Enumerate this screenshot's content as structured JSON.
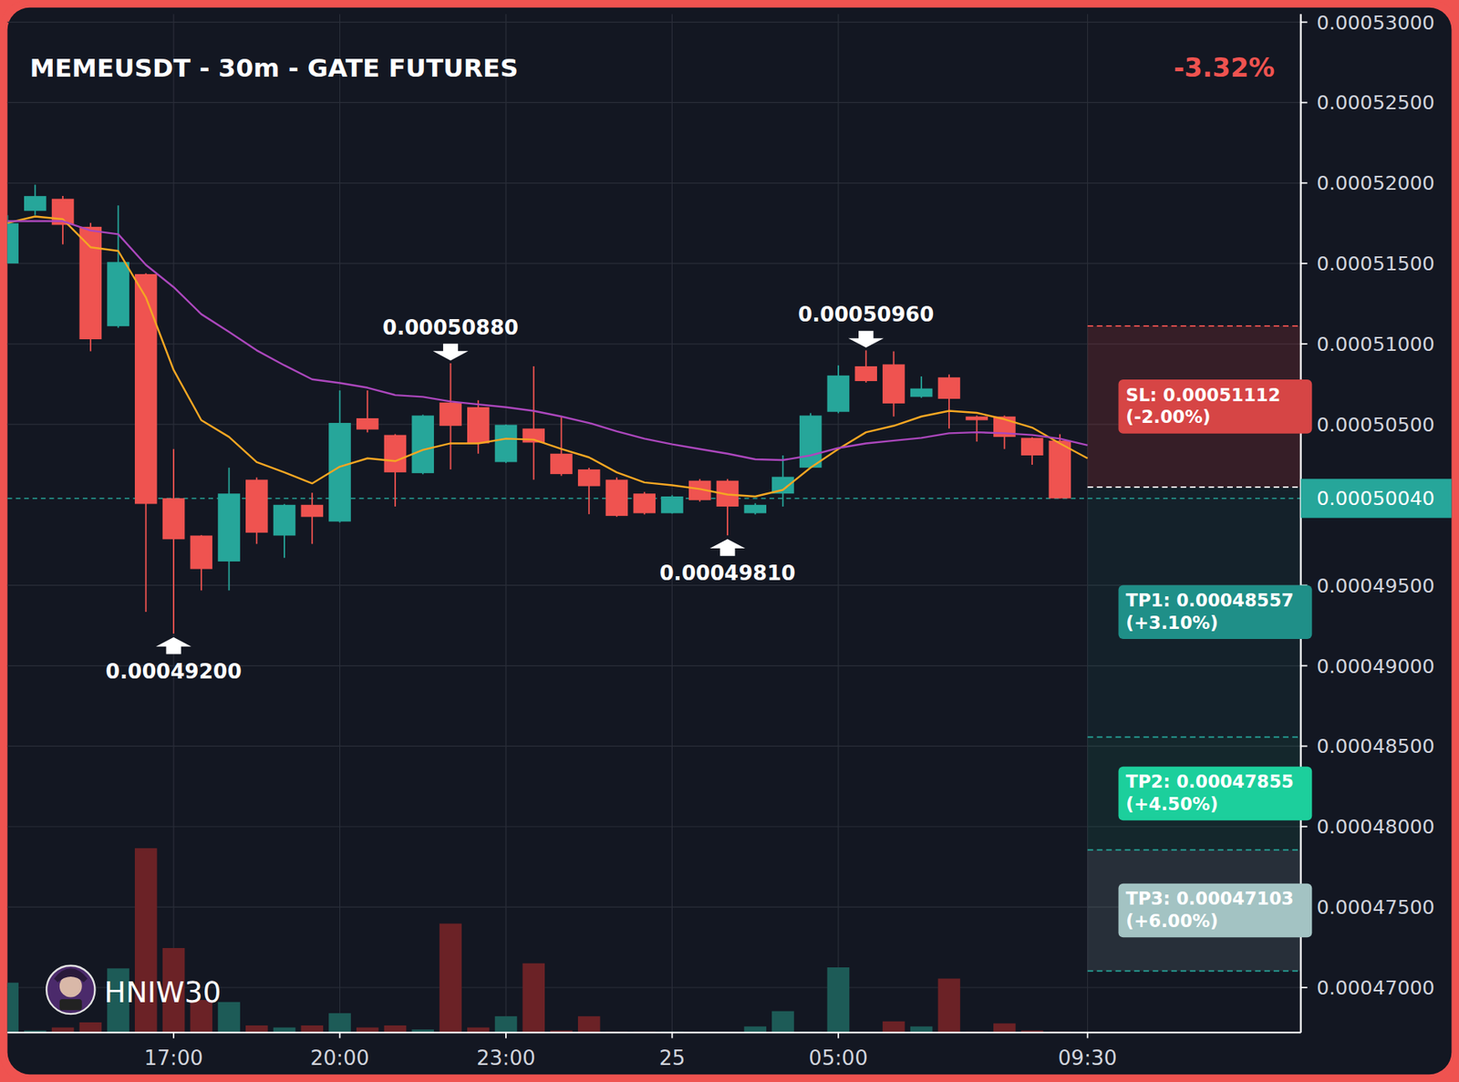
{
  "chart_data": {
    "type": "candlestick",
    "title": "MEMEUSDT - 30m - GATE FUTURES",
    "change_label": "-3.32%",
    "watermark": "HNIW30",
    "grid": true,
    "categories": [
      null,
      null,
      null,
      null,
      null,
      null,
      "17:00",
      null,
      null,
      null,
      null,
      null,
      "20:00",
      null,
      null,
      null,
      null,
      null,
      "23:00",
      null,
      null,
      null,
      null,
      null,
      "25",
      null,
      null,
      null,
      null,
      null,
      "05:00",
      null,
      null,
      null,
      null,
      null,
      null,
      null,
      null,
      "09:30"
    ],
    "ylim": [
      0.0004672,
      0.0005305
    ],
    "yticks": [
      {
        "value": 0.00047,
        "label": "0.00047000"
      },
      {
        "value": 0.000475,
        "label": "0.00047500"
      },
      {
        "value": 0.00048,
        "label": "0.00048000"
      },
      {
        "value": 0.000485,
        "label": "0.00048500"
      },
      {
        "value": 0.00049,
        "label": "0.00049000"
      },
      {
        "value": 0.000495,
        "label": "0.00049500"
      },
      {
        "value": 0.000505,
        "label": "0.00050500"
      },
      {
        "value": 0.00051,
        "label": "0.00051000"
      },
      {
        "value": 0.000515,
        "label": "0.00051500"
      },
      {
        "value": 0.00052,
        "label": "0.00052000"
      },
      {
        "value": 0.000525,
        "label": "0.00052500"
      },
      {
        "value": 0.00053,
        "label": "0.00053000"
      }
    ],
    "y2lim": [
      0,
      1000
    ],
    "series": [
      {
        "type": "candlestick",
        "open": [
          0.000515,
          0.00051827,
          0.00051902,
          0.00051728,
          0.0005111,
          0.00051434,
          0.00050041,
          0.00049809,
          0.00049648,
          0.00050156,
          0.00049809,
          0.0005,
          0.00049896,
          0.00050538,
          0.00050434,
          0.00050197,
          0.00050636,
          0.00050607,
          0.00050266,
          0.00050474,
          0.00050318,
          0.0005022,
          0.00050156,
          0.0005007,
          0.00049948,
          0.0005015,
          0.0005015,
          0.00049948,
          0.0005007,
          0.00050231,
          0.00050578,
          0.00050861,
          0.00050873,
          0.00050671,
          0.00050792,
          0.00050549,
          0.00050549,
          0.00050416,
          0.00050399,
          null
        ],
        "high": [
          0.000518,
          0.00051989,
          0.0005192,
          0.00051752,
          0.00051861,
          0.0005144,
          0.00050347,
          0.00049812,
          0.00050231,
          0.0005017,
          0.00050005,
          0.00050075,
          0.00050711,
          0.00050711,
          0.0005044,
          0.0005056,
          0.0005088,
          0.0005065,
          0.000505,
          0.00050861,
          0.00050549,
          0.0005023,
          0.0005017,
          0.0005008,
          0.0005006,
          0.0005016,
          0.0005016,
          0.0005001,
          0.00050307,
          0.0005057,
          0.00050867,
          0.0005096,
          0.00050954,
          0.00050798,
          0.0005081,
          0.00050555,
          0.00050555,
          0.0005042,
          0.00050439,
          null
        ],
        "low": [
          0.000515,
          0.000518,
          0.00051619,
          0.00050954,
          0.000511,
          0.00049335,
          0.000492,
          0.00049468,
          0.00049468,
          0.00049757,
          0.00049671,
          0.00049757,
          0.0004989,
          0.0005045,
          0.00049989,
          0.0005019,
          0.0005022,
          0.00050318,
          0.0005026,
          0.00050156,
          0.0005018,
          0.00049942,
          0.00049925,
          0.0004994,
          0.00049945,
          0.0005002,
          0.0004981,
          0.0004994,
          0.00049989,
          0.00050225,
          0.0005057,
          0.0005076,
          0.00050549,
          0.00050665,
          0.00050474,
          0.00050393,
          0.00050347,
          0.00050249,
          0.0005004,
          null
        ],
        "close": [
          0.0005175,
          0.00051919,
          0.0005174,
          0.00051029,
          0.00051509,
          0.00050006,
          0.00049786,
          0.00049601,
          0.0005007,
          0.00049827,
          0.0005,
          0.00049925,
          0.00050509,
          0.00050468,
          0.00050202,
          0.00050555,
          0.00050491,
          0.00050382,
          0.00050497,
          0.00050387,
          0.00050191,
          0.00050116,
          0.00049931,
          0.00049948,
          0.00050052,
          0.00050029,
          0.00049989,
          0.0005,
          0.00050174,
          0.00050555,
          0.00050804,
          0.00050769,
          0.0005063,
          0.00050723,
          0.00050659,
          0.00050526,
          0.00050422,
          0.00050307,
          0.0005004,
          null
        ],
        "colors": [
          "#26a69a",
          "#26a69a",
          "#ef5350",
          "#ef5350",
          "#26a69a",
          "#ef5350",
          "#ef5350",
          "#ef5350",
          "#26a69a",
          "#ef5350",
          "#26a69a",
          "#ef5350",
          "#26a69a",
          "#ef5350",
          "#ef5350",
          "#26a69a",
          "#ef5350",
          "#ef5350",
          "#26a69a",
          "#ef5350",
          "#ef5350",
          "#ef5350",
          "#ef5350",
          "#ef5350",
          "#26a69a",
          "#ef5350",
          "#ef5350",
          "#26a69a",
          "#26a69a",
          "#26a69a",
          "#26a69a",
          "#ef5350",
          "#ef5350",
          "#26a69a",
          "#ef5350",
          "#ef5350",
          "#ef5350",
          "#ef5350",
          "#ef5350",
          null
        ]
      },
      {
        "type": "line",
        "color": "#f5a623",
        "values": [
          0.00051752,
          0.00051792,
          0.00051775,
          0.00051601,
          0.00051578,
          0.00051289,
          0.00050838,
          0.00050526,
          0.00050422,
          0.00050266,
          0.00050202,
          0.00050133,
          0.00050237,
          0.00050289,
          0.00050272,
          0.00050341,
          0.00050382,
          0.00050382,
          0.00050411,
          0.00050405,
          0.00050347,
          0.00050295,
          0.00050202,
          0.00050139,
          0.00050122,
          0.00050098,
          0.00050064,
          0.00050052,
          0.00050093,
          0.00050231,
          0.00050347,
          0.00050451,
          0.00050491,
          0.00050549,
          0.00050584,
          0.00050572,
          0.00050532,
          0.0005048,
          0.00050382,
          0.00050289
        ]
      },
      {
        "type": "line",
        "color": "#ab47bc",
        "values": [
          0.00051763,
          0.00051763,
          0.00051763,
          0.00051705,
          0.00051682,
          0.00051491,
          0.00051353,
          0.00051185,
          0.00051075,
          0.0005096,
          0.00050867,
          0.0005078,
          0.00050757,
          0.00050728,
          0.00050682,
          0.00050671,
          0.00050642,
          0.00050624,
          0.00050607,
          0.00050584,
          0.00050549,
          0.00050509,
          0.00050457,
          0.00050411,
          0.00050376,
          0.00050347,
          0.00050318,
          0.00050283,
          0.00050278,
          0.00050307,
          0.00050353,
          0.00050382,
          0.00050399,
          0.00050416,
          0.00050445,
          0.00050451,
          0.00050445,
          0.00050434,
          0.00050411,
          0.0005037
        ]
      },
      {
        "type": "bar",
        "axis": "y2",
        "values": [
          49,
          2,
          5,
          10,
          63,
          181,
          83,
          32,
          30,
          7,
          5,
          7,
          19,
          5,
          7,
          3,
          107,
          5,
          16,
          68,
          2,
          16,
          1,
          1,
          1,
          0.5,
          0.5,
          6,
          21,
          1,
          64,
          0.5,
          11,
          6,
          53,
          1,
          9,
          2,
          1,
          null
        ],
        "colors": [
          "#1d5b57",
          "#1d5b57",
          "#6b2226",
          "#6b2226",
          "#1d5b57",
          "#6b2226",
          "#6b2226",
          "#6b2226",
          "#1d5b57",
          "#6b2226",
          "#1d5b57",
          "#6b2226",
          "#1d5b57",
          "#6b2226",
          "#6b2226",
          "#1d5b57",
          "#6b2226",
          "#6b2226",
          "#1d5b57",
          "#6b2226",
          "#6b2226",
          "#6b2226",
          "#6b2226",
          "#6b2226",
          "#1d5b57",
          "#6b2226",
          "#6b2226",
          "#1d5b57",
          "#1d5b57",
          "#1d5b57",
          "#1d5b57",
          "#6b2226",
          "#6b2226",
          "#1d5b57",
          "#6b2226",
          "#6b2226",
          "#6b2226",
          "#6b2226",
          "#6b2226",
          null
        ]
      }
    ],
    "annotations": [
      {
        "x": 16,
        "value": 0.0005088,
        "label": "0.00050880",
        "marker": "arrow-down"
      },
      {
        "x": 31,
        "value": 0.0005096,
        "label": "0.00050960",
        "marker": "arrow-down"
      },
      {
        "x": 6,
        "value": 0.000492,
        "label": "0.00049200",
        "marker": "arrow-up"
      },
      {
        "x": 26,
        "value": 0.0004981,
        "label": "0.00049810",
        "marker": "arrow-up"
      }
    ],
    "trade": {
      "entry": 0.0005011,
      "last_price": {
        "value": 0.0005004,
        "label": "0.00050040"
      },
      "stop_loss": {
        "value": 0.00051112,
        "label": "SL: 0.00051112",
        "change_label": "(-2.00%)",
        "color": "#d64545"
      },
      "targets": [
        {
          "value": 0.00048557,
          "label": "TP1: 0.00048557",
          "change_label": "(+3.10%)",
          "color": "#1f8f88"
        },
        {
          "value": 0.00047855,
          "label": "TP2: 0.00047855",
          "change_label": "(+4.50%)",
          "color": "#1ccf9c"
        },
        {
          "value": 0.00047103,
          "label": "TP3: 0.00047103",
          "change_label": "(+6.00%)",
          "color": "#a3c3c3"
        }
      ]
    }
  }
}
